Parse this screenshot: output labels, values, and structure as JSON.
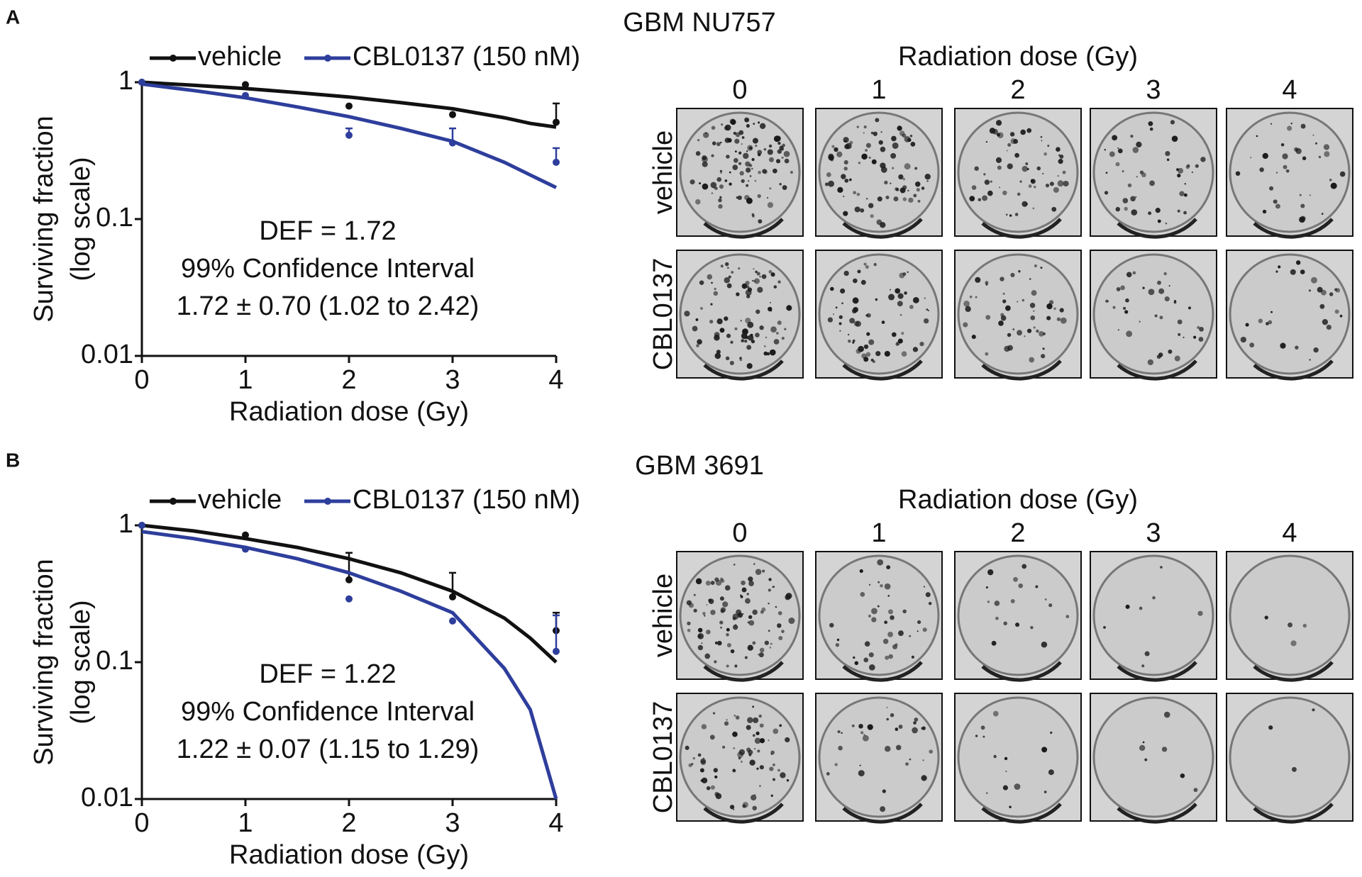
{
  "chart_data": [
    {
      "type": "line",
      "panel": "A",
      "title": "GBM NU757",
      "xlabel": "Radiation dose (Gy)",
      "ylabel": [
        "Surviving fraction",
        "(log scale)"
      ],
      "annotations": [
        "DEF = 1.72",
        "99% Confidence Interval",
        "1.72 ± 0.70 (1.02 to 2.42)"
      ],
      "x": [
        0,
        1,
        2,
        3,
        4
      ],
      "xlim": [
        0,
        4
      ],
      "xticks": [
        0,
        1,
        2,
        3,
        4
      ],
      "ylim": [
        0.01,
        1
      ],
      "yticks": [
        0.01,
        0.1,
        1
      ],
      "log_scale": true,
      "fit_x": [
        0,
        0.5,
        1,
        1.5,
        2,
        2.5,
        3,
        3.5,
        3.75,
        4
      ],
      "series": [
        {
          "name": "vehicle",
          "color": "#111111",
          "values": [
            1.0,
            0.96,
            0.67,
            0.58,
            0.51
          ],
          "errors": [
            null,
            null,
            null,
            null,
            0.19
          ],
          "fit": [
            1.0,
            0.95,
            0.9,
            0.84,
            0.78,
            0.71,
            0.64,
            0.55,
            0.5,
            0.47
          ]
        },
        {
          "name": "CBL0137 (150 nM)",
          "color": "#2e3e9c",
          "values": [
            1.0,
            0.8,
            0.41,
            0.36,
            0.26
          ],
          "errors": [
            null,
            null,
            0.05,
            0.1,
            0.07
          ],
          "fit": [
            0.97,
            0.87,
            0.77,
            0.66,
            0.56,
            0.46,
            0.37,
            0.26,
            0.21,
            0.17
          ]
        }
      ],
      "plates": {
        "header": "Radiation dose (Gy)",
        "columns": [
          "0",
          "1",
          "2",
          "3",
          "4"
        ],
        "rows": [
          "vehicle",
          "CBL0137"
        ]
      }
    },
    {
      "type": "line",
      "panel": "B",
      "title": "GBM 3691",
      "xlabel": "Radiation dose (Gy)",
      "ylabel": [
        "Surviving fraction",
        "(log scale)"
      ],
      "annotations": [
        "DEF = 1.22",
        "99% Confidence Interval",
        "1.22 ± 0.07 (1.15 to 1.29)"
      ],
      "x": [
        0,
        1,
        2,
        3,
        4
      ],
      "xlim": [
        0,
        4
      ],
      "xticks": [
        0,
        1,
        2,
        3,
        4
      ],
      "ylim": [
        0.01,
        1
      ],
      "yticks": [
        0.01,
        0.1,
        1
      ],
      "log_scale": true,
      "fit_x": [
        0,
        0.5,
        1,
        1.5,
        2,
        2.5,
        3,
        3.5,
        3.75,
        4
      ],
      "series": [
        {
          "name": "vehicle",
          "color": "#111111",
          "values": [
            1.0,
            0.85,
            0.4,
            0.3,
            0.17
          ],
          "errors": [
            null,
            null,
            0.23,
            0.15,
            0.06
          ],
          "fit": [
            1.0,
            0.91,
            0.8,
            0.69,
            0.57,
            0.45,
            0.33,
            0.21,
            0.15,
            0.1
          ]
        },
        {
          "name": "CBL0137 (150 nM)",
          "color": "#2e3e9c",
          "values": [
            1.0,
            0.67,
            0.29,
            0.2,
            0.12
          ],
          "errors": [
            null,
            null,
            null,
            null,
            0.1
          ],
          "fit": [
            0.9,
            0.8,
            0.69,
            0.57,
            0.45,
            0.33,
            0.23,
            0.09,
            0.045,
            0.01
          ]
        }
      ],
      "plates": {
        "header": "Radiation dose (Gy)",
        "columns": [
          "0",
          "1",
          "2",
          "3",
          "4"
        ],
        "rows": [
          "vehicle",
          "CBL0137"
        ]
      }
    }
  ]
}
